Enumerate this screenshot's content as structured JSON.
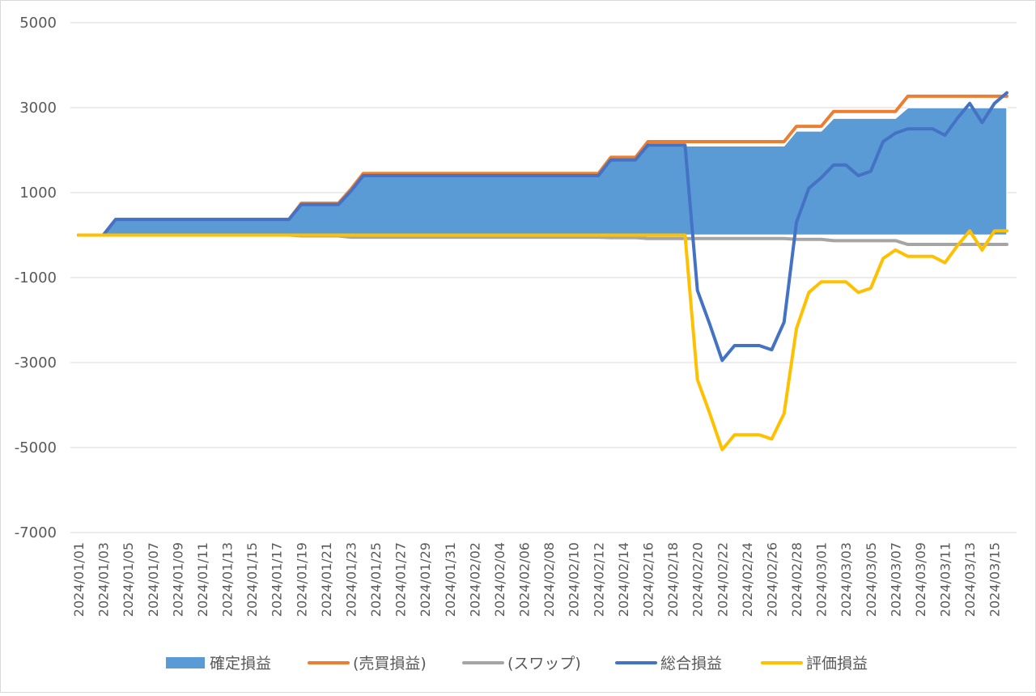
{
  "chart_data": {
    "type": "line",
    "title": "",
    "xlabel": "",
    "ylabel": "",
    "ylim": [
      -7000,
      5000
    ],
    "yticks": [
      5000,
      3000,
      1000,
      -1000,
      -3000,
      -5000,
      -7000
    ],
    "grid": true,
    "legend_position": "bottom",
    "x": [
      "2024/01/01",
      "2024/01/02",
      "2024/01/03",
      "2024/01/04",
      "2024/01/05",
      "2024/01/06",
      "2024/01/07",
      "2024/01/08",
      "2024/01/09",
      "2024/01/10",
      "2024/01/11",
      "2024/01/12",
      "2024/01/13",
      "2024/01/14",
      "2024/01/15",
      "2024/01/16",
      "2024/01/17",
      "2024/01/18",
      "2024/01/19",
      "2024/01/20",
      "2024/01/21",
      "2024/01/22",
      "2024/01/23",
      "2024/01/24",
      "2024/01/25",
      "2024/01/26",
      "2024/01/27",
      "2024/01/28",
      "2024/01/29",
      "2024/01/30",
      "2024/01/31",
      "2024/02/01",
      "2024/02/02",
      "2024/02/03",
      "2024/02/04",
      "2024/02/05",
      "2024/02/06",
      "2024/02/07",
      "2024/02/08",
      "2024/02/09",
      "2024/02/10",
      "2024/02/11",
      "2024/02/12",
      "2024/02/13",
      "2024/02/14",
      "2024/02/15",
      "2024/02/16",
      "2024/02/17",
      "2024/02/18",
      "2024/02/19",
      "2024/02/20",
      "2024/02/21",
      "2024/02/22",
      "2024/02/23",
      "2024/02/24",
      "2024/02/25",
      "2024/02/26",
      "2024/02/27",
      "2024/02/28",
      "2024/02/29",
      "2024/03/01",
      "2024/03/02",
      "2024/03/03",
      "2024/03/04",
      "2024/03/05",
      "2024/03/06",
      "2024/03/07",
      "2024/03/08",
      "2024/03/09",
      "2024/03/10",
      "2024/03/11",
      "2024/03/12",
      "2024/03/13",
      "2024/03/14",
      "2024/03/15",
      "2024/03/16"
    ],
    "xtick_labels": [
      "2024/01/01",
      "2024/01/03",
      "2024/01/05",
      "2024/01/07",
      "2024/01/09",
      "2024/01/11",
      "2024/01/13",
      "2024/01/15",
      "2024/01/17",
      "2024/01/19",
      "2024/01/21",
      "2024/01/23",
      "2024/01/25",
      "2024/01/27",
      "2024/01/29",
      "2024/01/31",
      "2024/02/02",
      "2024/02/04",
      "2024/02/06",
      "2024/02/08",
      "2024/02/10",
      "2024/02/12",
      "2024/02/14",
      "2024/02/16",
      "2024/02/18",
      "2024/02/20",
      "2024/02/22",
      "2024/02/24",
      "2024/02/26",
      "2024/02/28",
      "2024/03/01",
      "2024/03/03",
      "2024/03/05",
      "2024/03/07",
      "2024/03/09",
      "2024/03/11",
      "2024/03/13",
      "2024/03/15"
    ],
    "series": [
      {
        "name": "確定損益",
        "type": "area",
        "color": "#5b9bd5",
        "values": [
          0,
          0,
          0,
          350,
          350,
          350,
          350,
          350,
          350,
          350,
          350,
          350,
          350,
          350,
          350,
          350,
          350,
          350,
          700,
          700,
          700,
          700,
          1000,
          1400,
          1400,
          1400,
          1400,
          1400,
          1400,
          1400,
          1400,
          1400,
          1400,
          1400,
          1400,
          1400,
          1400,
          1400,
          1400,
          1400,
          1400,
          1400,
          1400,
          1750,
          1750,
          1750,
          2100,
          2100,
          2100,
          2100,
          2100,
          2100,
          2100,
          2100,
          2100,
          2100,
          2100,
          2100,
          2450,
          2450,
          2450,
          2750,
          2750,
          2750,
          2750,
          2750,
          2750,
          3000,
          3000,
          3000,
          3000,
          3000,
          3000,
          3000,
          3000,
          3000
        ]
      },
      {
        "name": "(売買損益)",
        "type": "line",
        "color": "#ed7d31",
        "values": [
          0,
          0,
          0,
          370,
          370,
          370,
          370,
          370,
          370,
          370,
          370,
          370,
          370,
          370,
          370,
          370,
          370,
          370,
          750,
          750,
          750,
          750,
          1080,
          1450,
          1450,
          1450,
          1450,
          1450,
          1450,
          1450,
          1450,
          1450,
          1450,
          1450,
          1450,
          1450,
          1450,
          1450,
          1450,
          1450,
          1450,
          1450,
          1450,
          1830,
          1830,
          1830,
          2200,
          2200,
          2200,
          2200,
          2200,
          2200,
          2200,
          2200,
          2200,
          2200,
          2200,
          2200,
          2560,
          2560,
          2560,
          2910,
          2910,
          2910,
          2910,
          2910,
          2910,
          3270,
          3270,
          3270,
          3270,
          3270,
          3270,
          3270,
          3270,
          3270
        ]
      },
      {
        "name": "(スワップ)",
        "type": "line",
        "color": "#a5a5a5",
        "values": [
          0,
          0,
          0,
          0,
          0,
          0,
          0,
          0,
          0,
          0,
          0,
          0,
          0,
          0,
          0,
          0,
          0,
          0,
          -20,
          -20,
          -20,
          -20,
          -50,
          -50,
          -50,
          -50,
          -50,
          -50,
          -50,
          -50,
          -50,
          -50,
          -50,
          -50,
          -50,
          -50,
          -50,
          -50,
          -50,
          -50,
          -50,
          -50,
          -50,
          -60,
          -60,
          -60,
          -80,
          -80,
          -80,
          -80,
          -80,
          -80,
          -80,
          -80,
          -80,
          -80,
          -80,
          -80,
          -100,
          -100,
          -100,
          -130,
          -130,
          -130,
          -130,
          -130,
          -130,
          -220,
          -220,
          -220,
          -220,
          -220,
          -220,
          -220,
          -220,
          -220
        ]
      },
      {
        "name": "総合損益",
        "type": "line",
        "color": "#4472c4",
        "values": [
          0,
          0,
          0,
          370,
          370,
          370,
          370,
          370,
          370,
          370,
          370,
          370,
          370,
          370,
          370,
          370,
          370,
          370,
          720,
          720,
          720,
          720,
          1030,
          1400,
          1400,
          1400,
          1400,
          1400,
          1400,
          1400,
          1400,
          1400,
          1400,
          1400,
          1400,
          1400,
          1400,
          1400,
          1400,
          1400,
          1400,
          1400,
          1400,
          1770,
          1770,
          1770,
          2120,
          2120,
          2120,
          2120,
          -1300,
          -2100,
          -2950,
          -2600,
          -2600,
          -2600,
          -2700,
          -2050,
          300,
          1100,
          1350,
          1650,
          1650,
          1400,
          1500,
          2200,
          2400,
          2500,
          2500,
          2500,
          2350,
          2750,
          3100,
          2650,
          3100,
          3350
        ]
      },
      {
        "name": "評価損益",
        "type": "line",
        "color": "#ffc000",
        "values": [
          0,
          0,
          0,
          0,
          0,
          0,
          0,
          0,
          0,
          0,
          0,
          0,
          0,
          0,
          0,
          0,
          0,
          0,
          0,
          0,
          0,
          0,
          0,
          0,
          0,
          0,
          0,
          0,
          0,
          0,
          0,
          0,
          0,
          0,
          0,
          0,
          0,
          0,
          0,
          0,
          0,
          0,
          0,
          0,
          0,
          0,
          0,
          0,
          0,
          0,
          -3400,
          -4200,
          -5050,
          -4700,
          -4700,
          -4700,
          -4800,
          -4200,
          -2200,
          -1350,
          -1100,
          -1100,
          -1100,
          -1350,
          -1250,
          -550,
          -350,
          -500,
          -500,
          -500,
          -650,
          -250,
          100,
          -350,
          100,
          100
        ]
      }
    ]
  }
}
